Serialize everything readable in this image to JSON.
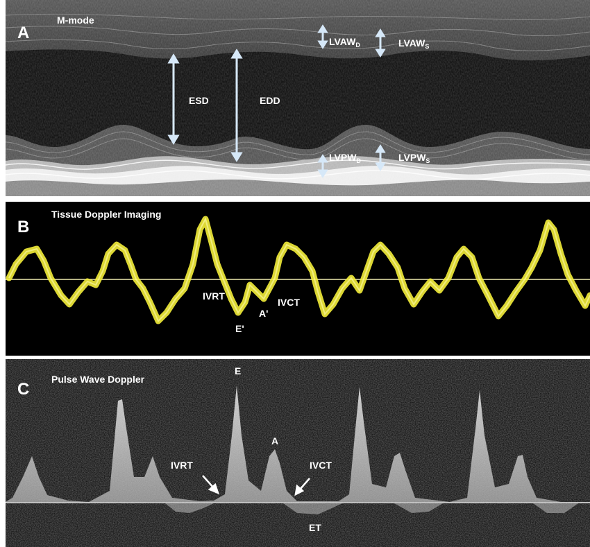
{
  "panels": [
    {
      "letter": "A",
      "title": "M-mode",
      "labels": {
        "esd": "ESD",
        "edd": "EDD",
        "lvaw_d": {
          "main": "LVAW",
          "sub": "D"
        },
        "lvaw_s": {
          "main": "LVAW",
          "sub": "S"
        },
        "lvpw_d": {
          "main": "LVPW",
          "sub": "D"
        },
        "lvpw_s": {
          "main": "LVPW",
          "sub": "S"
        }
      }
    },
    {
      "letter": "B",
      "title": "Tissue Doppler Imaging",
      "labels": {
        "ivrt": "IVRT",
        "ivct": "IVCT",
        "e_prime": "E'",
        "a_prime": "A'"
      }
    },
    {
      "letter": "C",
      "title": "Pulse Wave Doppler",
      "labels": {
        "e": "E",
        "a": "A",
        "ivrt": "IVRT",
        "ivct": "IVCT",
        "et": "ET"
      }
    }
  ],
  "colors": {
    "background": "#ffffff",
    "panel_a_bg": "#2a2a2a",
    "panel_b_bg": "#000000",
    "panel_c_bg": "#1a1a1a",
    "doppler_trace": "#f4ee3a",
    "baseline": "#f0ecb0",
    "arrow": "#cfe3f7",
    "text": "#ffffff"
  }
}
